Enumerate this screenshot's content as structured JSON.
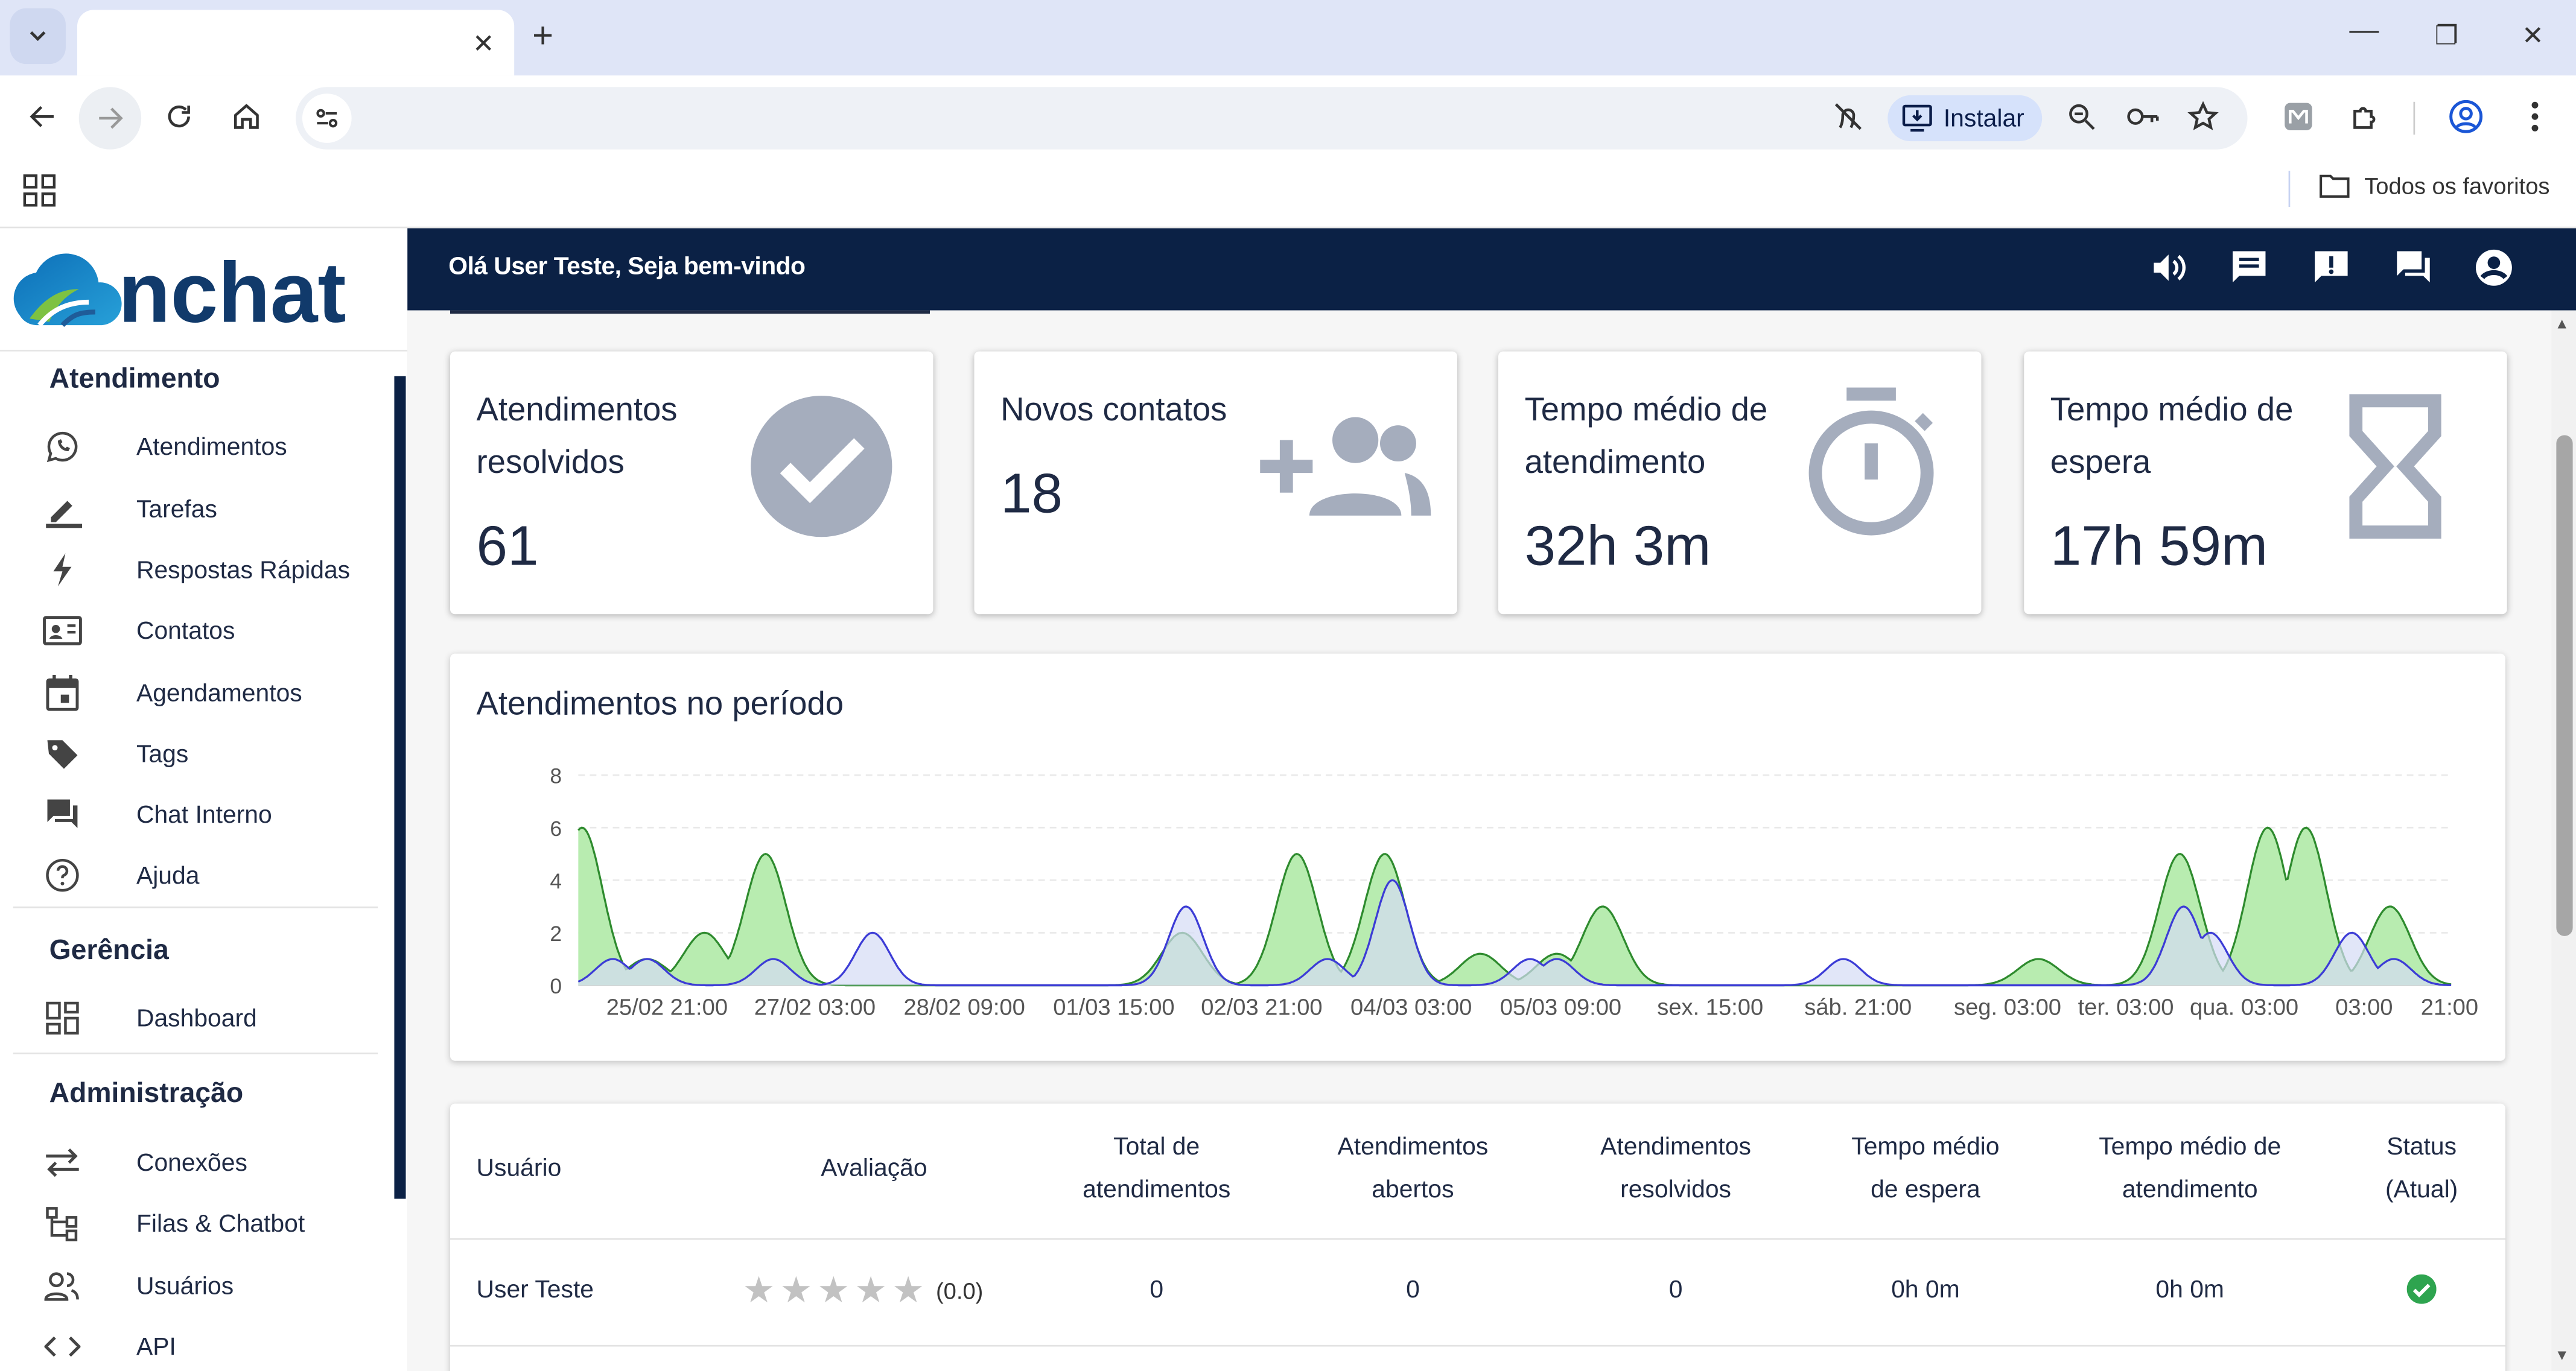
{
  "browser": {
    "new_tab_symbol": "+",
    "install_label": "Instalar",
    "bookmarks_folder": "Todos os favoritos"
  },
  "header": {
    "greeting": "Olá User Teste, Seja bem-vindo"
  },
  "sidebar": {
    "logo_text": "nchat",
    "sections": {
      "atendimento": "Atendimento",
      "gerencia": "Gerência",
      "administracao": "Administração"
    },
    "items": [
      {
        "label": "Atendimentos",
        "icon": "whatsapp-icon"
      },
      {
        "label": "Tarefas",
        "icon": "pencil-icon"
      },
      {
        "label": "Respostas Rápidas",
        "icon": "lightning-icon"
      },
      {
        "label": "Contatos",
        "icon": "contact-card-icon"
      },
      {
        "label": "Agendamentos",
        "icon": "calendar-icon"
      },
      {
        "label": "Tags",
        "icon": "tag-icon"
      },
      {
        "label": "Chat Interno",
        "icon": "forum-icon"
      },
      {
        "label": "Ajuda",
        "icon": "help-icon"
      },
      {
        "label": "Dashboard",
        "icon": "dashboard-icon"
      },
      {
        "label": "Conexões",
        "icon": "swap-icon"
      },
      {
        "label": "Filas & Chatbot",
        "icon": "tree-icon"
      },
      {
        "label": "Usuários",
        "icon": "users-icon"
      },
      {
        "label": "API",
        "icon": "code-icon"
      }
    ]
  },
  "cards": [
    {
      "title": "Atendimentos resolvidos",
      "value": "61",
      "icon": "check-circle-icon"
    },
    {
      "title": "Novos contatos",
      "value": "18",
      "icon": "group-add-icon"
    },
    {
      "title": "Tempo médio de atendimento",
      "value": "32h 3m",
      "icon": "timer-icon"
    },
    {
      "title": "Tempo médio de espera",
      "value": "17h 59m",
      "icon": "hourglass-icon"
    }
  ],
  "chart_data": {
    "type": "area",
    "title": "Atendimentos no período",
    "ylim": [
      0,
      8
    ],
    "yticks": [
      "0",
      "2",
      "4",
      "6",
      "8"
    ],
    "xticks": [
      "25/02 21:00",
      "27/02 03:00",
      "28/02 09:00",
      "01/03 15:00",
      "02/03 21:00",
      "04/03 03:00",
      "05/03 09:00",
      "sex. 15:00",
      "sáb. 21:00",
      "seg. 03:00",
      "ter. 03:00",
      "qua. 03:00",
      "03:00",
      "21:00"
    ],
    "grid": true,
    "colors": {
      "green_fill": "#b8ecb0",
      "green_line": "#2e8b2e",
      "blue_fill": "#d4dcf5",
      "blue_line": "#3c3cd6"
    },
    "series": [
      {
        "peaks": [
          [
            0.05,
            6
          ],
          [
            0.9,
            1
          ],
          [
            1.65,
            2
          ],
          [
            2.45,
            5
          ],
          [
            7.9,
            2
          ],
          [
            9.4,
            5
          ],
          [
            10.55,
            5
          ],
          [
            11.8,
            1.2
          ],
          [
            12.8,
            1.2
          ],
          [
            13.4,
            3
          ],
          [
            19.1,
            1
          ],
          [
            20.95,
            5
          ],
          [
            22.1,
            6
          ],
          [
            22.6,
            6
          ],
          [
            23.7,
            3
          ]
        ]
      },
      {
        "peaks": [
          [
            0.45,
            1
          ],
          [
            0.9,
            1
          ],
          [
            2.55,
            1
          ],
          [
            3.85,
            2
          ],
          [
            7.95,
            3
          ],
          [
            9.8,
            1
          ],
          [
            10.65,
            4
          ],
          [
            12.45,
            1
          ],
          [
            12.8,
            1
          ],
          [
            16.55,
            1
          ],
          [
            21.0,
            3
          ],
          [
            21.35,
            2
          ],
          [
            23.2,
            2
          ],
          [
            23.75,
            1
          ]
        ]
      }
    ]
  },
  "table": {
    "headers": [
      "Usuário",
      "Avaliação",
      "Total de atendimentos",
      "Atendimentos abertos",
      "Atendimentos resolvidos",
      "Tempo médio de espera",
      "Tempo médio de atendimento",
      "Status (Atual)"
    ],
    "headers_lines": [
      [
        "Usuário"
      ],
      [
        "Avaliação"
      ],
      [
        "Total de",
        "atendimentos"
      ],
      [
        "Atendimentos",
        "abertos"
      ],
      [
        "Atendimentos",
        "resolvidos"
      ],
      [
        "Tempo médio",
        "de espera"
      ],
      [
        "Tempo médio de",
        "atendimento"
      ],
      [
        "Status",
        "(Atual)"
      ]
    ],
    "rows": [
      {
        "user": "User Teste",
        "rating": 0,
        "rating_text": "(0.0)",
        "total": "0",
        "open": "0",
        "resolved": "0",
        "wait": "0h 0m",
        "service": "0h 0m",
        "status": "online"
      }
    ]
  }
}
